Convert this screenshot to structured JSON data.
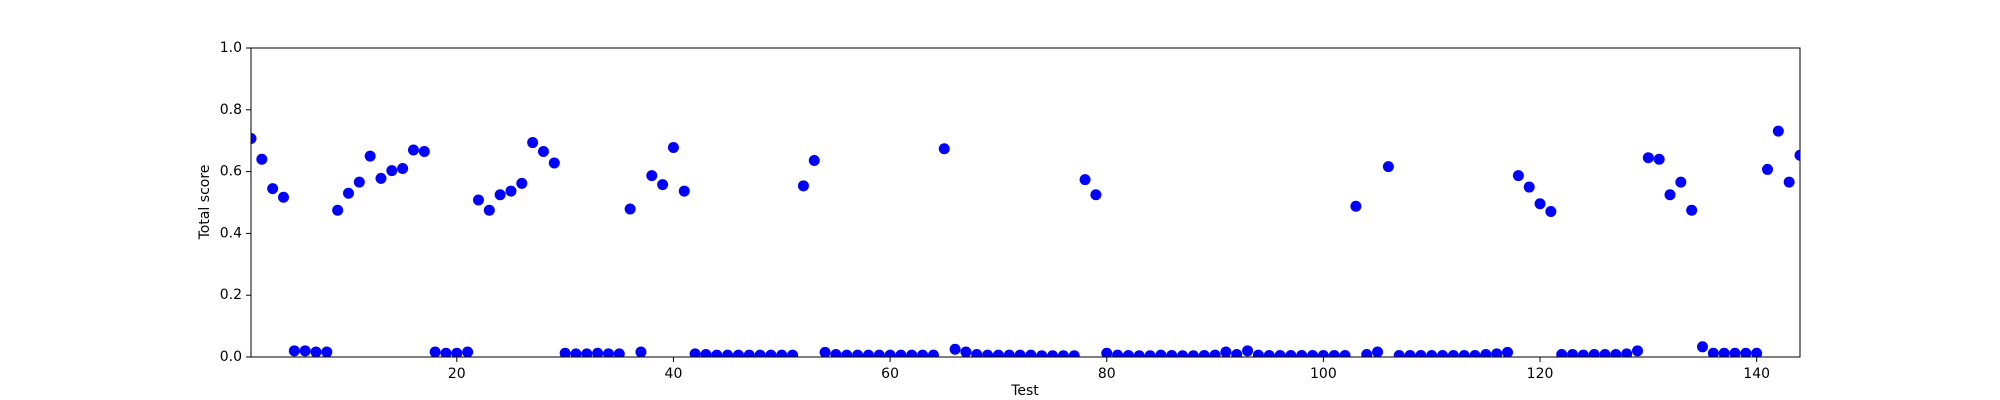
{
  "chart_data": {
    "type": "scatter",
    "x_label": "Test",
    "y_label": "Total score",
    "color": "#0000ff",
    "x": [
      1,
      2,
      3,
      4,
      5,
      6,
      7,
      8,
      9,
      10,
      11,
      12,
      13,
      14,
      15,
      16,
      17,
      18,
      19,
      20,
      21,
      22,
      23,
      24,
      25,
      26,
      27,
      28,
      29,
      30,
      31,
      32,
      33,
      34,
      35,
      36,
      37,
      38,
      39,
      40,
      41,
      42,
      43,
      44,
      45,
      46,
      47,
      48,
      49,
      50,
      51,
      52,
      53,
      54,
      55,
      56,
      57,
      58,
      59,
      60,
      61,
      62,
      63,
      64,
      65,
      66,
      67,
      68,
      69,
      70,
      71,
      72,
      73,
      74,
      75,
      76,
      77,
      78,
      79,
      80,
      81,
      82,
      83,
      84,
      85,
      86,
      87,
      88,
      89,
      90,
      91,
      92,
      93,
      94,
      95,
      96,
      97,
      98,
      99,
      100,
      101,
      102,
      103,
      104,
      105,
      106,
      107,
      108,
      109,
      110,
      111,
      112,
      113,
      114,
      115,
      116,
      117,
      118,
      119,
      120,
      121,
      122,
      123,
      124,
      125,
      126,
      127,
      128,
      129,
      130,
      131,
      132,
      133,
      134,
      135,
      136,
      137,
      138,
      139,
      140,
      141,
      142,
      143,
      144
    ],
    "values": [
      0.707,
      0.64,
      0.545,
      0.517,
      0.02,
      0.02,
      0.016,
      0.016,
      0.475,
      0.53,
      0.566,
      0.65,
      0.578,
      0.603,
      0.61,
      0.67,
      0.665,
      0.016,
      0.012,
      0.012,
      0.016,
      0.508,
      0.475,
      0.525,
      0.537,
      0.562,
      0.694,
      0.665,
      0.628,
      0.012,
      0.01,
      0.01,
      0.012,
      0.01,
      0.01,
      0.479,
      0.016,
      0.587,
      0.558,
      0.678,
      0.537,
      0.01,
      0.008,
      0.006,
      0.006,
      0.006,
      0.006,
      0.006,
      0.006,
      0.006,
      0.006,
      0.554,
      0.636,
      0.015,
      0.008,
      0.006,
      0.006,
      0.006,
      0.006,
      0.006,
      0.006,
      0.006,
      0.006,
      0.006,
      0.674,
      0.025,
      0.016,
      0.008,
      0.006,
      0.006,
      0.006,
      0.006,
      0.006,
      0.004,
      0.004,
      0.004,
      0.004,
      0.574,
      0.525,
      0.012,
      0.006,
      0.005,
      0.004,
      0.004,
      0.006,
      0.005,
      0.004,
      0.004,
      0.005,
      0.006,
      0.016,
      0.008,
      0.02,
      0.006,
      0.005,
      0.005,
      0.005,
      0.005,
      0.005,
      0.005,
      0.005,
      0.005,
      0.488,
      0.008,
      0.016,
      0.616,
      0.005,
      0.005,
      0.005,
      0.005,
      0.005,
      0.005,
      0.005,
      0.005,
      0.008,
      0.01,
      0.015,
      0.587,
      0.55,
      0.496,
      0.471,
      0.008,
      0.008,
      0.006,
      0.008,
      0.008,
      0.008,
      0.01,
      0.02,
      0.645,
      0.64,
      0.525,
      0.566,
      0.475,
      0.033,
      0.012,
      0.012,
      0.012,
      0.012,
      0.012,
      0.607,
      0.731,
      0.566,
      0.653
    ],
    "xlim": [
      1,
      144
    ],
    "ylim": [
      0,
      1
    ],
    "xticks": [
      20,
      40,
      60,
      80,
      100,
      120,
      140
    ],
    "yticks": [
      {
        "value": 0,
        "label": "0.0"
      },
      0.2,
      0.4,
      0.6,
      0.8,
      {
        "value": 1,
        "label": "1.0"
      }
    ]
  }
}
